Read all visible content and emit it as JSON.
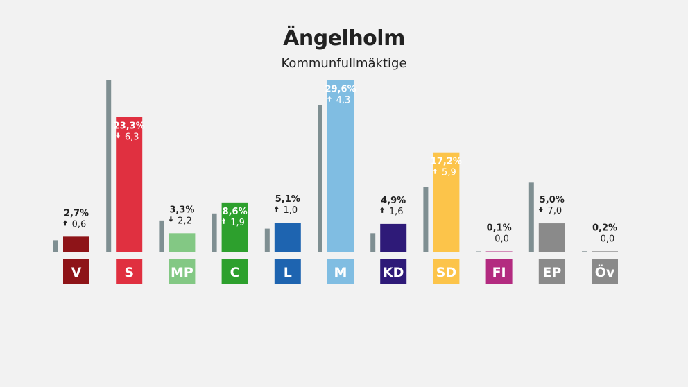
{
  "title": "Ängelholm",
  "subtitle": "Kommunfullmäktige",
  "colors": {
    "background": "#f2f2f2",
    "previous_bar": "#7f8f92",
    "dark_text": "#222222",
    "light_text": "#ffffff"
  },
  "chart_data": {
    "type": "bar",
    "title": "Ängelholm",
    "subtitle": "Kommunfullmäktige",
    "categories": [
      "V",
      "S",
      "MP",
      "C",
      "L",
      "M",
      "KD",
      "SD",
      "FI",
      "EP",
      "Öv"
    ],
    "series": [
      {
        "values": [
          2.7,
          23.3,
          3.3,
          8.6,
          5.1,
          29.6,
          4.9,
          17.2,
          0.1,
          5.0,
          0.2
        ]
      },
      {
        "values": [
          2.1,
          29.6,
          5.5,
          6.7,
          4.1,
          25.3,
          3.3,
          11.3,
          0.1,
          12.0,
          0.2
        ]
      }
    ],
    "value_labels": [
      "2,7%",
      "23,3%",
      "3,3%",
      "8,6%",
      "5,1%",
      "29,6%",
      "4,9%",
      "17,2%",
      "0,1%",
      "5,0%",
      "0,2%"
    ],
    "change_labels": [
      "0,6",
      "6,3",
      "2,2",
      "1,9",
      "1,0",
      "4,3",
      "1,6",
      "5,9",
      "0,0",
      "7,0",
      "0,0"
    ],
    "change_direction": [
      "up",
      "down",
      "down",
      "up",
      "up",
      "up",
      "up",
      "up",
      "none",
      "down",
      "none"
    ],
    "party_colors": [
      "#8e1418",
      "#e03040",
      "#83c884",
      "#2da02d",
      "#1e64b0",
      "#80bde2",
      "#2e1a78",
      "#fcc44a",
      "#b32b80",
      "#8a8a8a",
      "#8a8a8a"
    ],
    "ylim": [
      0,
      32
    ],
    "grid": false,
    "legend": "none"
  }
}
